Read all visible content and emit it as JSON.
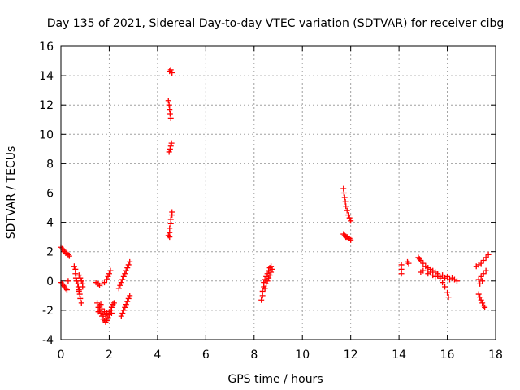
{
  "chart_data": {
    "type": "scatter",
    "title": "Day 135 of 2021, Sidereal Day-to-day VTEC variation (SDTVAR) for receiver cibg",
    "xlabel": "GPS time / hours",
    "ylabel": "SDTVAR / TECUs",
    "xlim": [
      0,
      18
    ],
    "ylim": [
      -4,
      16
    ],
    "xticks": [
      0,
      2,
      4,
      6,
      8,
      10,
      12,
      14,
      16,
      18
    ],
    "yticks": [
      -4,
      -2,
      0,
      2,
      4,
      6,
      8,
      10,
      12,
      14,
      16
    ],
    "grid": true,
    "marker": "+",
    "colors": {
      "series": "#ff0000",
      "axis": "#000000",
      "grid": "#a0a0a0"
    },
    "series": [
      {
        "name": "SDTVAR",
        "points": [
          [
            0.0,
            2.3
          ],
          [
            0.05,
            2.2
          ],
          [
            0.1,
            2.1
          ],
          [
            0.15,
            2.0
          ],
          [
            0.2,
            1.9
          ],
          [
            0.25,
            1.9
          ],
          [
            0.3,
            1.8
          ],
          [
            0.35,
            1.7
          ],
          [
            0.0,
            -0.1
          ],
          [
            0.05,
            -0.2
          ],
          [
            0.1,
            -0.3
          ],
          [
            0.15,
            -0.4
          ],
          [
            0.2,
            -0.5
          ],
          [
            0.25,
            -0.6
          ],
          [
            0.3,
            0.0
          ],
          [
            0.55,
            1.0
          ],
          [
            0.6,
            0.8
          ],
          [
            0.6,
            0.5
          ],
          [
            0.62,
            0.2
          ],
          [
            0.65,
            0.0
          ],
          [
            0.7,
            -0.2
          ],
          [
            0.72,
            -0.4
          ],
          [
            0.75,
            -0.6
          ],
          [
            0.78,
            -0.9
          ],
          [
            0.8,
            -1.2
          ],
          [
            0.85,
            -1.5
          ],
          [
            0.75,
            0.4
          ],
          [
            0.8,
            0.2
          ],
          [
            0.85,
            0.0
          ],
          [
            0.9,
            -0.2
          ],
          [
            0.9,
            -0.4
          ],
          [
            0.75,
            -0.7
          ],
          [
            1.45,
            -0.1
          ],
          [
            1.5,
            -0.2
          ],
          [
            1.55,
            -0.2
          ],
          [
            1.6,
            -0.3
          ],
          [
            1.7,
            -0.2
          ],
          [
            1.8,
            -0.1
          ],
          [
            1.9,
            0.1
          ],
          [
            1.95,
            0.3
          ],
          [
            2.0,
            0.5
          ],
          [
            2.05,
            0.7
          ],
          [
            1.5,
            -1.5
          ],
          [
            1.55,
            -1.8
          ],
          [
            1.6,
            -2.0
          ],
          [
            1.65,
            -2.2
          ],
          [
            1.7,
            -2.4
          ],
          [
            1.75,
            -2.6
          ],
          [
            1.8,
            -2.7
          ],
          [
            1.85,
            -2.8
          ],
          [
            1.9,
            -2.7
          ],
          [
            1.95,
            -2.5
          ],
          [
            2.0,
            -2.3
          ],
          [
            2.05,
            -2.0
          ],
          [
            2.1,
            -1.8
          ],
          [
            2.15,
            -1.6
          ],
          [
            2.2,
            -1.5
          ],
          [
            1.6,
            -1.7
          ],
          [
            1.7,
            -1.9
          ],
          [
            1.8,
            -2.1
          ],
          [
            1.9,
            -2.2
          ],
          [
            2.0,
            -2.1
          ],
          [
            1.75,
            -2.3
          ],
          [
            1.85,
            -2.4
          ],
          [
            2.1,
            -2.2
          ],
          [
            1.55,
            -2.1
          ],
          [
            1.65,
            -1.6
          ],
          [
            2.5,
            -2.4
          ],
          [
            2.55,
            -2.2
          ],
          [
            2.6,
            -2.0
          ],
          [
            2.65,
            -1.8
          ],
          [
            2.7,
            -1.6
          ],
          [
            2.75,
            -1.4
          ],
          [
            2.8,
            -1.2
          ],
          [
            2.85,
            -1.0
          ],
          [
            2.4,
            -0.5
          ],
          [
            2.45,
            -0.3
          ],
          [
            2.5,
            -0.1
          ],
          [
            2.55,
            0.1
          ],
          [
            2.6,
            0.3
          ],
          [
            2.65,
            0.5
          ],
          [
            2.7,
            0.7
          ],
          [
            2.75,
            0.9
          ],
          [
            2.8,
            1.1
          ],
          [
            2.85,
            1.3
          ],
          [
            4.45,
            3.1
          ],
          [
            4.5,
            3.3
          ],
          [
            4.5,
            3.6
          ],
          [
            4.55,
            3.9
          ],
          [
            4.55,
            4.2
          ],
          [
            4.6,
            4.5
          ],
          [
            4.6,
            4.7
          ],
          [
            4.5,
            3.0
          ],
          [
            4.48,
            8.8
          ],
          [
            4.52,
            9.0
          ],
          [
            4.55,
            9.2
          ],
          [
            4.58,
            9.4
          ],
          [
            4.45,
            12.3
          ],
          [
            4.48,
            12.0
          ],
          [
            4.5,
            11.7
          ],
          [
            4.52,
            11.4
          ],
          [
            4.55,
            11.1
          ],
          [
            4.5,
            14.3
          ],
          [
            4.55,
            14.4
          ],
          [
            4.6,
            14.2
          ],
          [
            8.3,
            -1.3
          ],
          [
            8.35,
            -1.0
          ],
          [
            8.35,
            -0.7
          ],
          [
            8.4,
            -0.4
          ],
          [
            8.4,
            -0.1
          ],
          [
            8.45,
            0.1
          ],
          [
            8.5,
            0.3
          ],
          [
            8.55,
            0.5
          ],
          [
            8.6,
            0.7
          ],
          [
            8.65,
            0.9
          ],
          [
            8.7,
            1.0
          ],
          [
            8.45,
            -0.5
          ],
          [
            8.5,
            -0.2
          ],
          [
            8.55,
            0.0
          ],
          [
            8.6,
            0.2
          ],
          [
            8.65,
            0.4
          ],
          [
            8.7,
            0.6
          ],
          [
            8.75,
            0.8
          ],
          [
            11.7,
            6.3
          ],
          [
            11.72,
            6.0
          ],
          [
            11.75,
            5.7
          ],
          [
            11.78,
            5.4
          ],
          [
            11.8,
            5.1
          ],
          [
            11.85,
            4.8
          ],
          [
            11.9,
            4.5
          ],
          [
            11.95,
            4.3
          ],
          [
            12.0,
            4.1
          ],
          [
            11.7,
            3.2
          ],
          [
            11.75,
            3.1
          ],
          [
            11.8,
            3.0
          ],
          [
            11.85,
            3.0
          ],
          [
            11.9,
            2.9
          ],
          [
            11.95,
            2.9
          ],
          [
            12.0,
            2.8
          ],
          [
            14.1,
            1.1
          ],
          [
            14.1,
            0.8
          ],
          [
            14.1,
            0.5
          ],
          [
            14.35,
            1.3
          ],
          [
            14.4,
            1.2
          ],
          [
            14.8,
            1.6
          ],
          [
            14.85,
            1.5
          ],
          [
            14.9,
            1.4
          ],
          [
            15.0,
            1.2
          ],
          [
            15.1,
            1.0
          ],
          [
            15.2,
            0.9
          ],
          [
            15.3,
            0.8
          ],
          [
            15.4,
            0.7
          ],
          [
            15.5,
            0.6
          ],
          [
            15.6,
            0.4
          ],
          [
            15.7,
            0.2
          ],
          [
            15.8,
            -0.1
          ],
          [
            15.9,
            -0.4
          ],
          [
            16.0,
            -0.8
          ],
          [
            16.05,
            -1.1
          ],
          [
            14.9,
            0.6
          ],
          [
            15.0,
            0.7
          ],
          [
            15.2,
            0.5
          ],
          [
            15.4,
            0.4
          ],
          [
            15.6,
            0.5
          ],
          [
            15.8,
            0.4
          ],
          [
            16.0,
            0.3
          ],
          [
            16.2,
            0.2
          ],
          [
            16.3,
            0.1
          ],
          [
            16.4,
            0.0
          ],
          [
            15.5,
            0.3
          ],
          [
            15.3,
            0.6
          ],
          [
            15.7,
            0.3
          ],
          [
            16.1,
            0.1
          ],
          [
            15.9,
            0.2
          ],
          [
            17.2,
            1.0
          ],
          [
            17.3,
            1.1
          ],
          [
            17.4,
            1.2
          ],
          [
            17.5,
            1.4
          ],
          [
            17.6,
            1.6
          ],
          [
            17.7,
            1.8
          ],
          [
            17.3,
            -0.9
          ],
          [
            17.35,
            -1.1
          ],
          [
            17.4,
            -1.3
          ],
          [
            17.45,
            -1.5
          ],
          [
            17.5,
            -1.7
          ],
          [
            17.55,
            -1.8
          ],
          [
            17.3,
            0.1
          ],
          [
            17.4,
            0.3
          ],
          [
            17.5,
            0.5
          ],
          [
            17.6,
            0.7
          ],
          [
            17.35,
            -0.2
          ],
          [
            17.45,
            0.0
          ]
        ]
      }
    ]
  }
}
